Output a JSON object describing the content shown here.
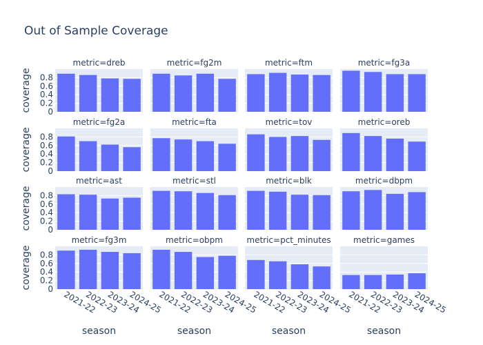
{
  "chart_data": {
    "type": "bar",
    "title": "Out of Sample Coverage",
    "xlabel": "season",
    "ylabel": "coverage",
    "categories": [
      "2021-22",
      "2022-23",
      "2023-24",
      "2024-25"
    ],
    "yticks": [
      0,
      0.2,
      0.4,
      0.6,
      0.8
    ],
    "ylim": [
      0,
      1.0
    ],
    "grid": true,
    "bar_color": "#636efa",
    "panel_bg_color": "#e5ecf6",
    "panels": [
      {
        "title": "metric=dreb",
        "values": [
          0.89,
          0.86,
          0.78,
          0.77
        ]
      },
      {
        "title": "metric=fg2m",
        "values": [
          0.89,
          0.85,
          0.89,
          0.77
        ]
      },
      {
        "title": "metric=ftm",
        "values": [
          0.88,
          0.91,
          0.87,
          0.86
        ]
      },
      {
        "title": "metric=fg3a",
        "values": [
          0.96,
          0.93,
          0.88,
          0.88
        ]
      },
      {
        "title": "metric=fg2a",
        "values": [
          0.81,
          0.7,
          0.62,
          0.56
        ]
      },
      {
        "title": "metric=fta",
        "values": [
          0.77,
          0.74,
          0.7,
          0.64
        ]
      },
      {
        "title": "metric=tov",
        "values": [
          0.86,
          0.8,
          0.82,
          0.73
        ]
      },
      {
        "title": "metric=oreb",
        "values": [
          0.89,
          0.82,
          0.76,
          0.69
        ]
      },
      {
        "title": "metric=ast",
        "values": [
          0.83,
          0.82,
          0.73,
          0.75
        ]
      },
      {
        "title": "metric=stl",
        "values": [
          0.91,
          0.9,
          0.86,
          0.81
        ]
      },
      {
        "title": "metric=blk",
        "values": [
          0.91,
          0.89,
          0.82,
          0.81
        ]
      },
      {
        "title": "metric=dbpm",
        "values": [
          0.9,
          0.93,
          0.84,
          0.88
        ]
      },
      {
        "title": "metric=fg3m",
        "values": [
          0.9,
          0.92,
          0.87,
          0.84
        ]
      },
      {
        "title": "metric=obpm",
        "values": [
          0.92,
          0.87,
          0.75,
          0.78
        ]
      },
      {
        "title": "metric=pct_minutes",
        "values": [
          0.68,
          0.65,
          0.58,
          0.53
        ]
      },
      {
        "title": "metric=games",
        "values": [
          0.33,
          0.33,
          0.34,
          0.37
        ]
      }
    ]
  }
}
